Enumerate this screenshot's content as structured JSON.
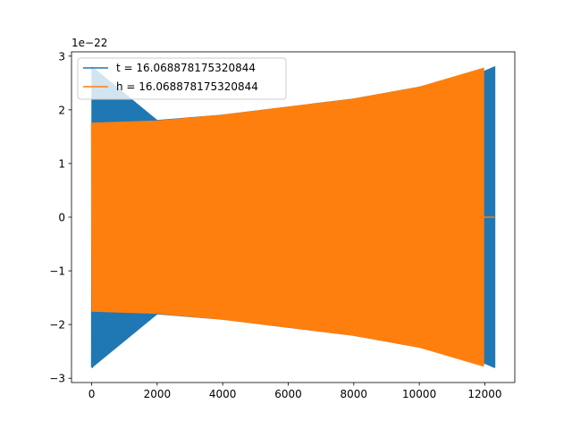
{
  "chart_data": {
    "type": "line",
    "title": "",
    "xlabel": "",
    "ylabel": "",
    "y_offset_text": "1e−22",
    "xlim": [
      -615,
      12915
    ],
    "ylim": [
      -3.08,
      3.08
    ],
    "x_ticks": [
      0,
      2000,
      4000,
      6000,
      8000,
      10000,
      12000
    ],
    "x_tick_labels": [
      "0",
      "2000",
      "4000",
      "6000",
      "8000",
      "10000",
      "12000"
    ],
    "y_ticks": [
      -3,
      -2,
      -1,
      0,
      1,
      2,
      3
    ],
    "y_tick_labels": [
      "−3",
      "−2",
      "−1",
      "0",
      "1",
      "2",
      "3"
    ],
    "grid": false,
    "legend_position": "upper-left",
    "series": [
      {
        "name": "t = 16.068878175320844",
        "color": "#1f77b4",
        "shape": "oscillating-envelope",
        "envelope": {
          "x": [
            0,
            2000,
            4000,
            6000,
            8000,
            10000,
            12000,
            12300
          ],
          "amplitude": [
            2.8,
            1.8,
            1.9,
            2.05,
            2.2,
            2.42,
            2.72,
            2.8
          ]
        },
        "x_end": 12300,
        "tail_value": 0
      },
      {
        "name": "h = 16.068878175320844",
        "color": "#ff7f0e",
        "shape": "oscillating-envelope",
        "envelope": {
          "x": [
            0,
            2000,
            4000,
            6000,
            8000,
            10000,
            12000
          ],
          "amplitude": [
            1.75,
            1.79,
            1.9,
            2.05,
            2.2,
            2.42,
            2.78
          ]
        },
        "x_end": 11960,
        "tail_value": 0,
        "tail_x_end": 12300
      }
    ]
  }
}
